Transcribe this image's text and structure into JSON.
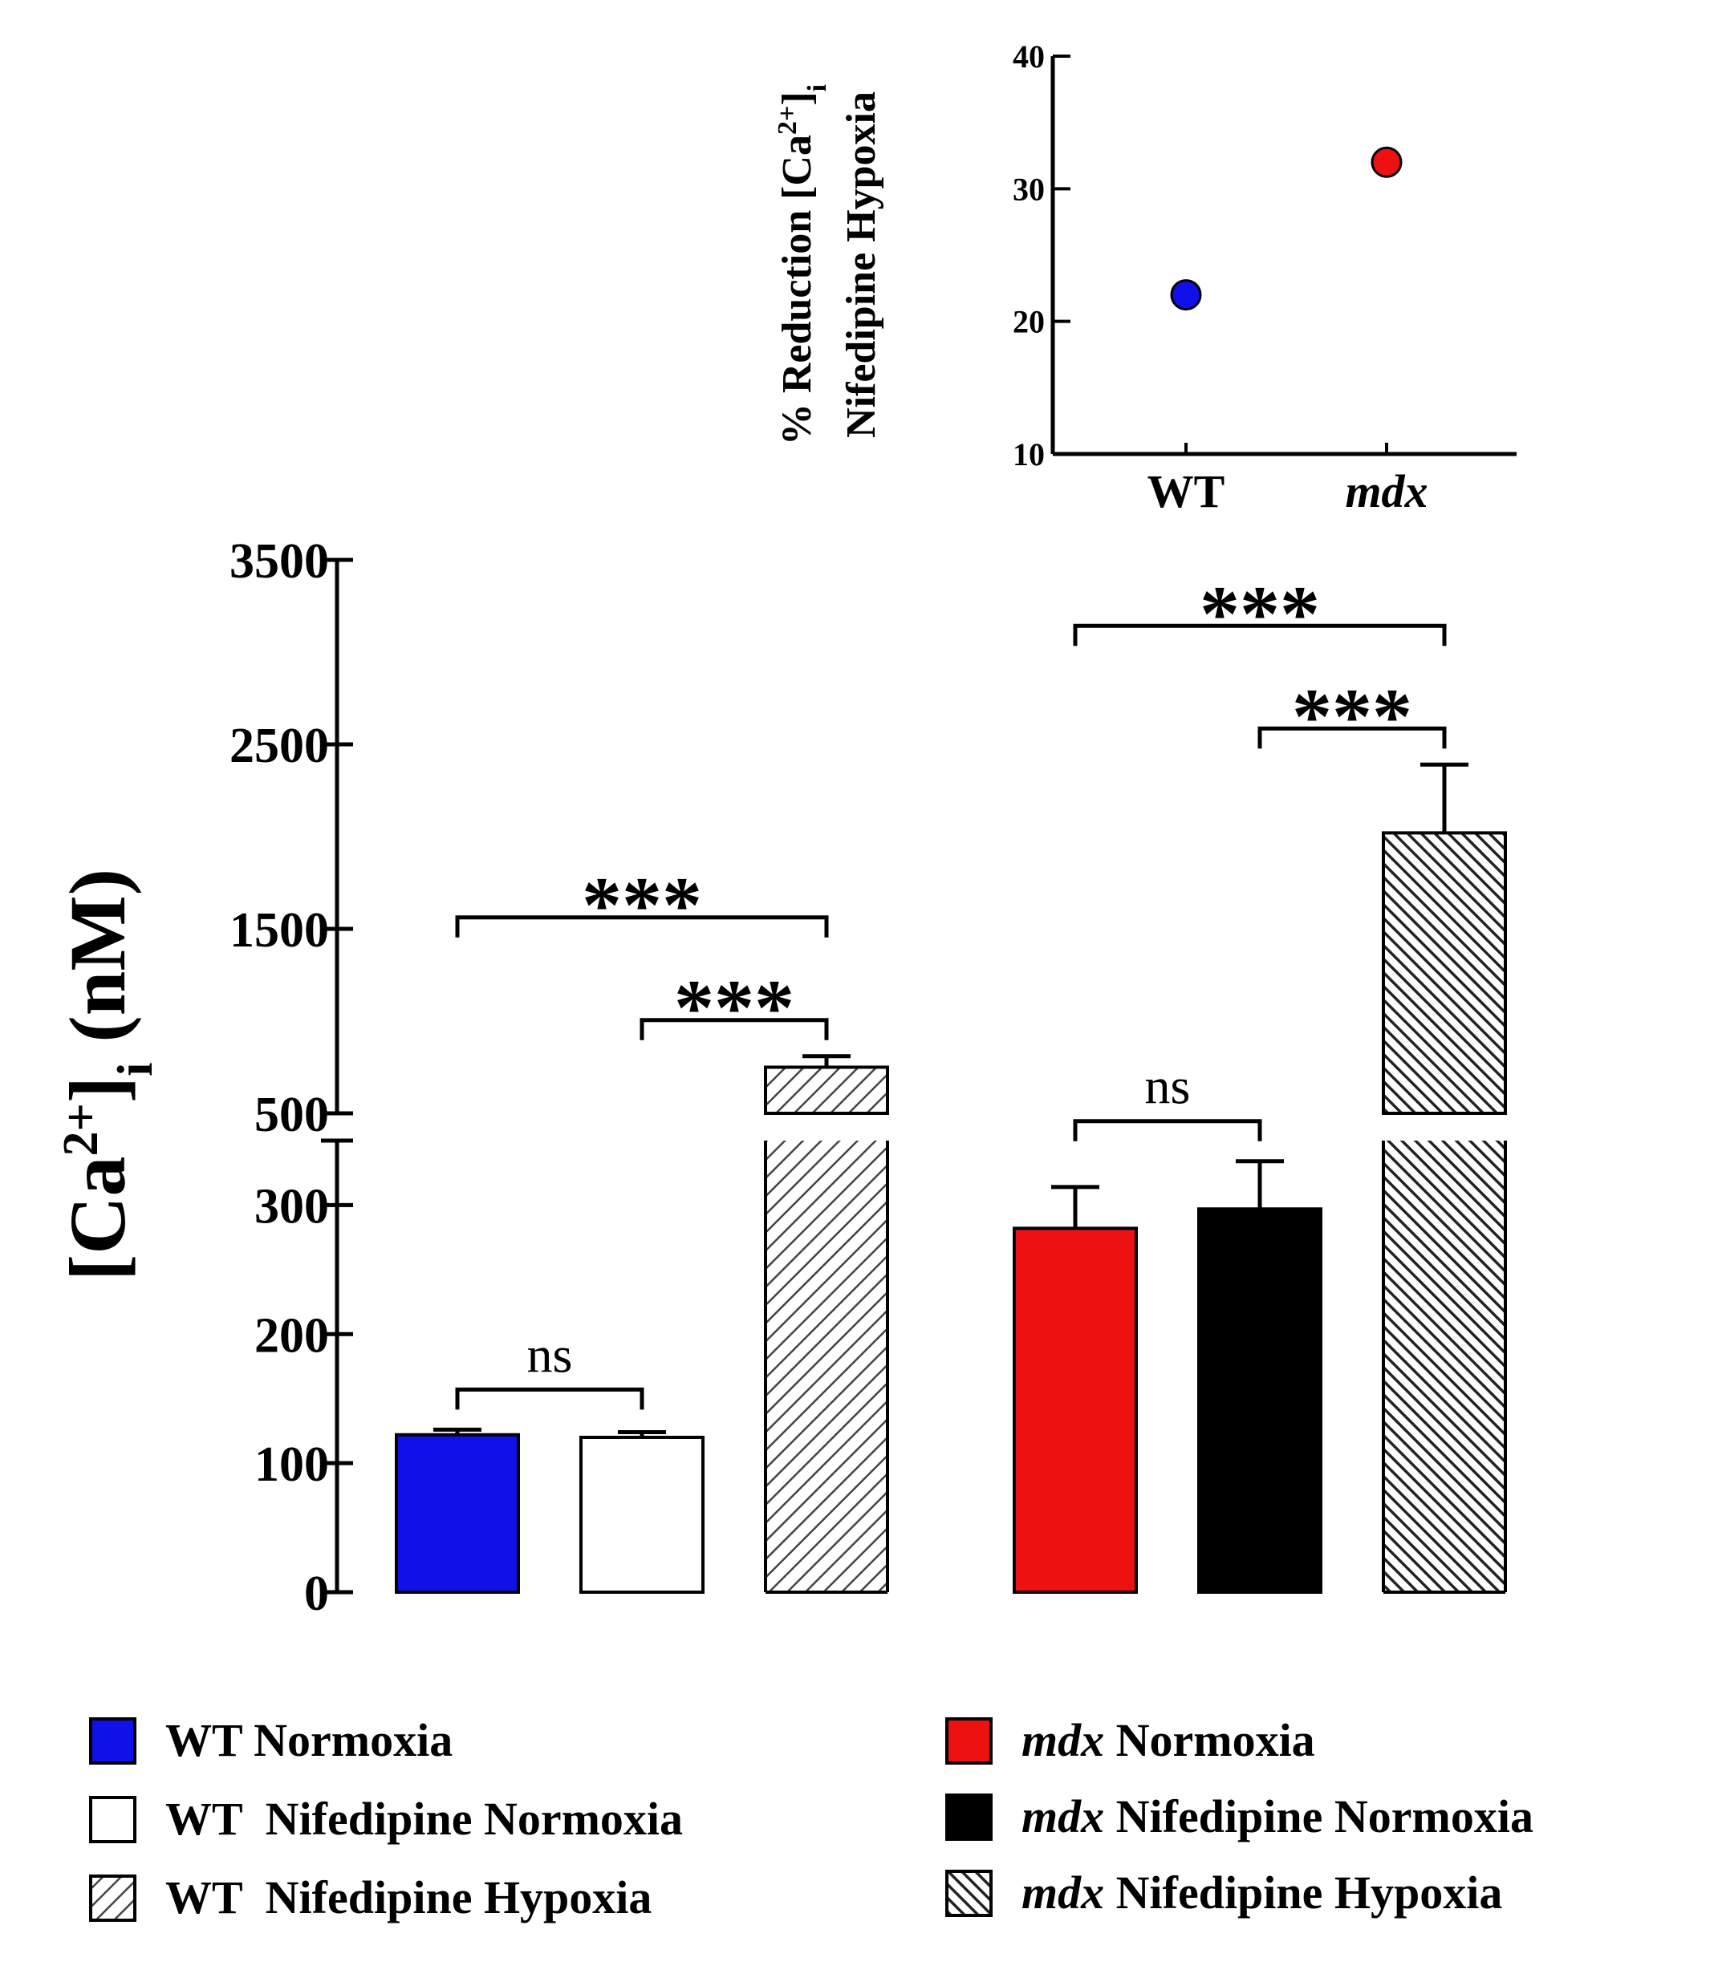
{
  "chart_data": [
    {
      "type": "scatter",
      "ylabel_line1": "% Reduction [Ca2+]i",
      "ylabel_line2": "Nifedipine Hypoxia",
      "ylabel_parts": {
        "pre": "% Reduction [Ca",
        "sup": "2+",
        "post": "]",
        "sub": "i"
      },
      "ylim": [
        10,
        40
      ],
      "yticks": [
        10,
        20,
        30,
        40
      ],
      "categories": [
        "WT",
        "mdx"
      ],
      "values": [
        22,
        32
      ],
      "colors": [
        "#1010e8",
        "#ee1111"
      ]
    },
    {
      "type": "bar",
      "ylabel": "[Ca2+]i (nM)",
      "ylabel_parts": {
        "pre": "[Ca",
        "sup": "2+",
        "post": "]",
        "sub": "i",
        "unit": "(nM)"
      },
      "axis_break": {
        "lower": [
          0,
          350
        ],
        "upper": [
          500,
          3500
        ]
      },
      "yticks_lower": [
        0,
        100,
        200,
        300
      ],
      "yticks_upper": [
        500,
        1500,
        2500,
        3500
      ],
      "series": [
        {
          "name": "WT Normoxia",
          "value": 122,
          "error": 4,
          "fill": "#1010e8",
          "pattern": "solid"
        },
        {
          "name": "WT  Nifedipine Normoxia",
          "value": 120,
          "error": 4,
          "fill": "#ffffff",
          "pattern": "solid"
        },
        {
          "name": "WT  Nifedipine Hypoxia",
          "value": 750,
          "error": 60,
          "fill": "#ffffff",
          "pattern": "hatch-light"
        },
        {
          "name": "mdx Normoxia",
          "value": 282,
          "error": 32,
          "fill": "#ee1111",
          "pattern": "solid"
        },
        {
          "name": "mdx Nifedipine Normoxia",
          "value": 297,
          "error": 37,
          "fill": "#000000",
          "pattern": "solid"
        },
        {
          "name": "mdx Nifedipine Hypoxia",
          "value": 2020,
          "error": 370,
          "fill": "#ffffff",
          "pattern": "hatch-dense"
        }
      ],
      "significance": [
        {
          "from": 0,
          "to": 1,
          "label": "ns"
        },
        {
          "from": 1,
          "to": 2,
          "label": "***"
        },
        {
          "from": 0,
          "to": 2,
          "label": "***"
        },
        {
          "from": 3,
          "to": 4,
          "label": "ns"
        },
        {
          "from": 4,
          "to": 5,
          "label": "***"
        },
        {
          "from": 3,
          "to": 5,
          "label": "***"
        }
      ]
    }
  ],
  "legend": [
    {
      "prefix": "",
      "italic": "",
      "text": "WT Normoxia",
      "fill": "#1010e8",
      "pattern": "solid"
    },
    {
      "prefix": "",
      "italic": "",
      "text": "WT  Nifedipine Normoxia",
      "fill": "#ffffff",
      "pattern": "solid"
    },
    {
      "prefix": "",
      "italic": "",
      "text": "WT  Nifedipine Hypoxia",
      "fill": "#ffffff",
      "pattern": "hatch-light"
    },
    {
      "prefix": "",
      "italic": "mdx",
      "text": " Normoxia",
      "fill": "#ee1111",
      "pattern": "solid"
    },
    {
      "prefix": "",
      "italic": "mdx",
      "text": " Nifedipine Normoxia",
      "fill": "#000000",
      "pattern": "solid"
    },
    {
      "prefix": "",
      "italic": "mdx",
      "text": " Nifedipine Hypoxia",
      "fill": "#ffffff",
      "pattern": "hatch-dense"
    }
  ]
}
